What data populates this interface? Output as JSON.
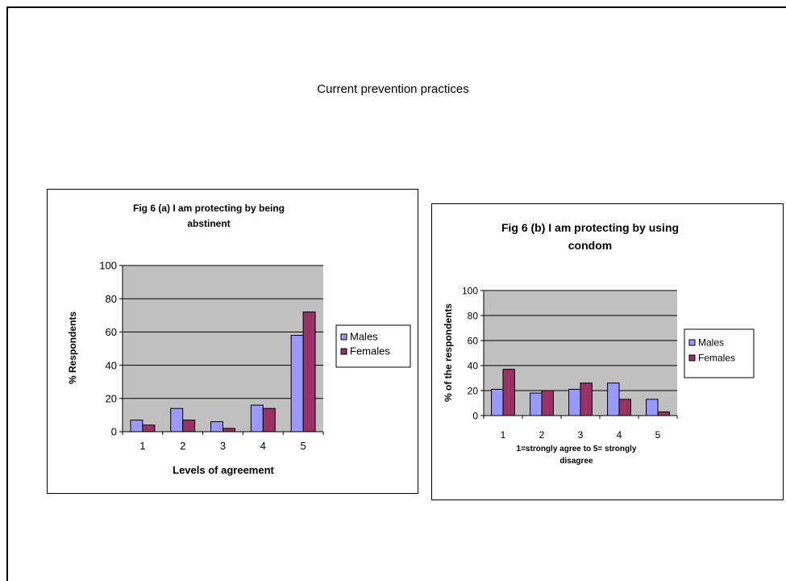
{
  "page": {
    "title": "Current prevention practices"
  },
  "chart_data": [
    {
      "type": "bar",
      "title_lines": [
        "Fig 6 (a) I am protecting by being",
        "abstinent"
      ],
      "xlabel": "Levels of agreement",
      "xlabel_lines": [
        "Levels of agreement"
      ],
      "ylabel": "% Respondents",
      "categories": [
        "1",
        "2",
        "3",
        "4",
        "5"
      ],
      "series": [
        {
          "name": "Males",
          "color": "#9999ff",
          "values": [
            7,
            14,
            6,
            16,
            58
          ]
        },
        {
          "name": "Females",
          "color": "#993366",
          "values": [
            4,
            7,
            2,
            14,
            72
          ]
        }
      ],
      "ylim": [
        0,
        100
      ],
      "yticks": [
        0,
        20,
        40,
        60,
        80,
        100
      ],
      "plot_background": "#c0c0c0",
      "grid": true,
      "legend_position": "right"
    },
    {
      "type": "bar",
      "title_lines": [
        "Fig 6 (b) I am protecting by using",
        "condom"
      ],
      "xlabel": "1=strongly agree to 5= strongly disagree",
      "xlabel_lines": [
        "1=strongly agree to 5= strongly",
        "disagree"
      ],
      "ylabel": "% of the respondents",
      "categories": [
        "1",
        "2",
        "3",
        "4",
        "5"
      ],
      "series": [
        {
          "name": "Males",
          "color": "#9999ff",
          "values": [
            21,
            18,
            21,
            26,
            13
          ]
        },
        {
          "name": "Females",
          "color": "#993366",
          "values": [
            37,
            20,
            26,
            13,
            3
          ]
        }
      ],
      "ylim": [
        0,
        100
      ],
      "yticks": [
        0,
        20,
        40,
        60,
        80,
        100
      ],
      "plot_background": "#c0c0c0",
      "grid": true,
      "legend_position": "right"
    }
  ]
}
